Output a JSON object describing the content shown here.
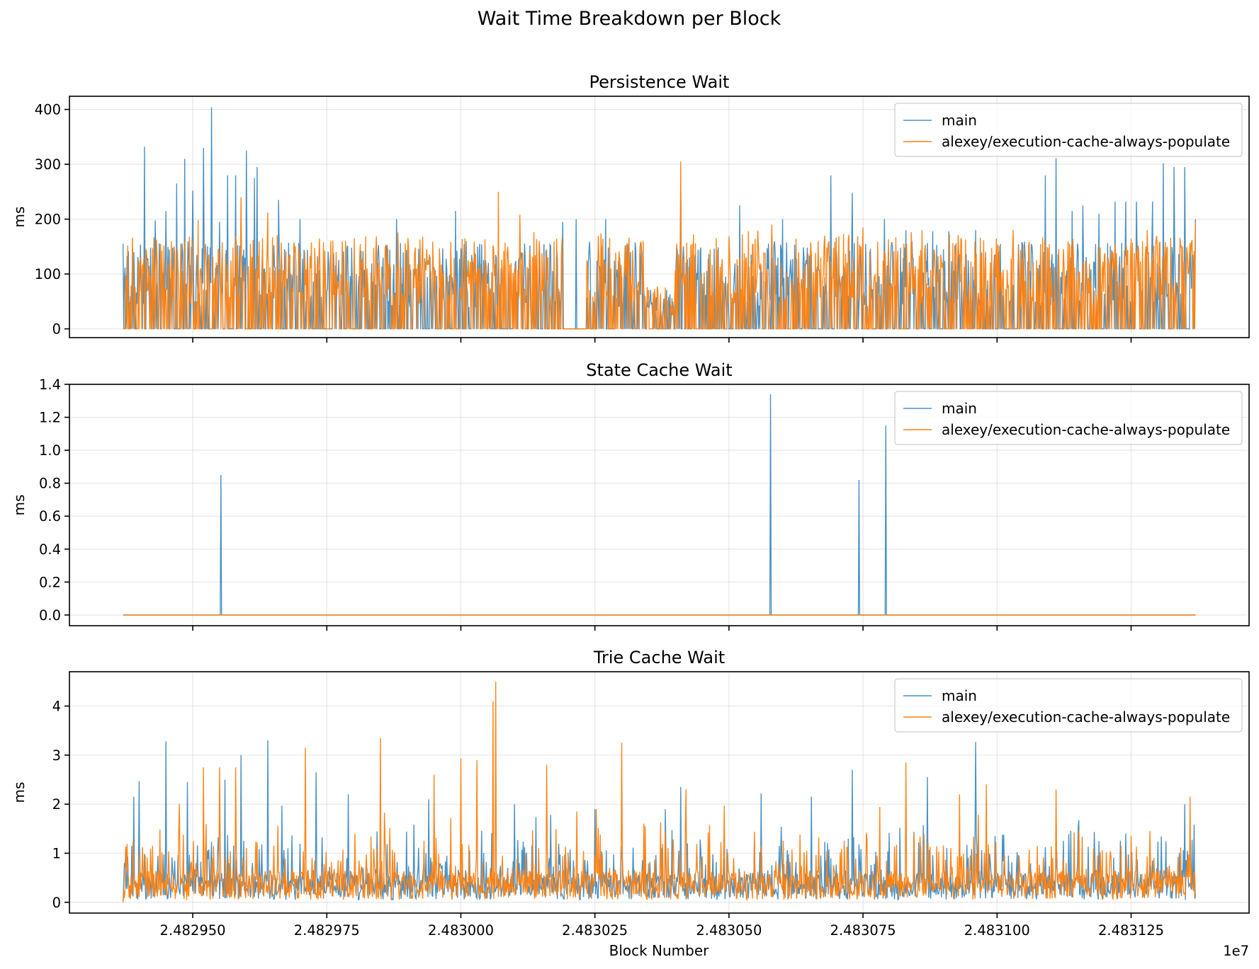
{
  "figure": {
    "title": "Wait Time Breakdown per Block"
  },
  "chart_data": {
    "type": "line",
    "x_label": "Block Number",
    "x_offset_label": "1e7",
    "x_ticks": [
      2482950,
      2482975,
      2483000,
      2483025,
      2483050,
      2483075,
      2483100,
      2483125
    ],
    "x_tick_labels": [
      "2.482950",
      "2.482975",
      "2.483000",
      "2.483025",
      "2.483050",
      "2.483075",
      "2.483100",
      "2.483125"
    ],
    "x_range": [
      2482937,
      2483137
    ],
    "xlim": [
      2482927,
      2483147
    ],
    "grid": true,
    "legend_position": "upper right",
    "series": [
      {
        "name": "main",
        "color": "#1f77b4"
      },
      {
        "name": "alexey/execution-cache-always-populate",
        "color": "#ff7f0e"
      }
    ],
    "panels": [
      {
        "title": "Persistence Wait",
        "ylabel": "ms",
        "ylim": [
          -16,
          424
        ],
        "y_ticks": [
          0,
          100,
          200,
          300,
          400
        ],
        "y_tick_labels": [
          "0",
          "100",
          "200",
          "300",
          "400"
        ],
        "main_peaks": [
          {
            "x": 2482937,
            "y": 155
          },
          {
            "x": 2482939,
            "y": 140
          },
          {
            "x": 2482941,
            "y": 332
          },
          {
            "x": 2482943,
            "y": 198
          },
          {
            "x": 2482945,
            "y": 215
          },
          {
            "x": 2482947,
            "y": 265
          },
          {
            "x": 2482948.5,
            "y": 310
          },
          {
            "x": 2482950,
            "y": 252
          },
          {
            "x": 2482952,
            "y": 330
          },
          {
            "x": 2482953.5,
            "y": 404
          },
          {
            "x": 2482955,
            "y": 195
          },
          {
            "x": 2482956.5,
            "y": 280
          },
          {
            "x": 2482958,
            "y": 280
          },
          {
            "x": 2482960,
            "y": 325
          },
          {
            "x": 2482961.5,
            "y": 275
          },
          {
            "x": 2482962,
            "y": 295
          },
          {
            "x": 2482966,
            "y": 235
          },
          {
            "x": 2482970,
            "y": 200
          },
          {
            "x": 2482988,
            "y": 200
          },
          {
            "x": 2482999,
            "y": 215
          },
          {
            "x": 2483019,
            "y": 195
          },
          {
            "x": 2483021.5,
            "y": 200
          },
          {
            "x": 2483027,
            "y": 200
          },
          {
            "x": 2483041,
            "y": 250
          },
          {
            "x": 2483052,
            "y": 225
          },
          {
            "x": 2483060,
            "y": 200
          },
          {
            "x": 2483069,
            "y": 280
          },
          {
            "x": 2483073,
            "y": 248
          },
          {
            "x": 2483079,
            "y": 200
          },
          {
            "x": 2483083,
            "y": 180
          },
          {
            "x": 2483088,
            "y": 178
          },
          {
            "x": 2483091,
            "y": 178
          },
          {
            "x": 2483096,
            "y": 180
          },
          {
            "x": 2483109,
            "y": 280
          },
          {
            "x": 2483111,
            "y": 311
          },
          {
            "x": 2483114,
            "y": 215
          },
          {
            "x": 2483116,
            "y": 225
          },
          {
            "x": 2483119,
            "y": 210
          },
          {
            "x": 2483122,
            "y": 232
          },
          {
            "x": 2483124,
            "y": 232
          },
          {
            "x": 2483126,
            "y": 232
          },
          {
            "x": 2483129,
            "y": 232
          },
          {
            "x": 2483131,
            "y": 302
          },
          {
            "x": 2483133,
            "y": 295
          },
          {
            "x": 2483135,
            "y": 295
          },
          {
            "x": 2483137,
            "y": 200
          }
        ],
        "alexey_peaks": [
          {
            "x": 2482944,
            "y": 155
          },
          {
            "x": 2482951,
            "y": 198
          },
          {
            "x": 2482959,
            "y": 240
          },
          {
            "x": 2482964,
            "y": 212
          },
          {
            "x": 2483007,
            "y": 250
          },
          {
            "x": 2483011,
            "y": 208
          },
          {
            "x": 2483041,
            "y": 305
          },
          {
            "x": 2483058,
            "y": 190
          },
          {
            "x": 2483075,
            "y": 185
          },
          {
            "x": 2483086,
            "y": 180
          },
          {
            "x": 2483103,
            "y": 180
          },
          {
            "x": 2483128,
            "y": 180
          },
          {
            "x": 2483137,
            "y": 195
          }
        ],
        "notes": [
          "main and alexey both sit at 0 ms between 2483019 and 2483023"
        ]
      },
      {
        "title": "State Cache Wait",
        "ylabel": "ms",
        "ylim": [
          -0.065,
          1.4
        ],
        "y_ticks": [
          0.0,
          0.2,
          0.4,
          0.6,
          0.8,
          1.0,
          1.2,
          1.4
        ],
        "y_tick_labels": [
          "0.0",
          "0.2",
          "0.4",
          "0.6",
          "0.8",
          "1.0",
          "1.2",
          "1.4"
        ],
        "main_spikes": [
          {
            "x": 2482955.3,
            "y": 0.85
          },
          {
            "x": 2483057.7,
            "y": 1.34
          },
          {
            "x": 2483074.2,
            "y": 0.82
          },
          {
            "x": 2483079.2,
            "y": 1.15
          }
        ],
        "alexey_constant": 0.0
      },
      {
        "title": "Trie Cache Wait",
        "ylabel": "ms",
        "ylim": [
          -0.22,
          4.7
        ],
        "y_ticks": [
          0,
          1,
          2,
          3,
          4
        ],
        "y_tick_labels": [
          "0",
          "1",
          "2",
          "3",
          "4"
        ],
        "main_peaks": [
          {
            "x": 2482939,
            "y": 2.15
          },
          {
            "x": 2482940,
            "y": 2.47
          },
          {
            "x": 2482945,
            "y": 3.28
          },
          {
            "x": 2482949,
            "y": 2.45
          },
          {
            "x": 2482956,
            "y": 2.5
          },
          {
            "x": 2482959,
            "y": 3.0
          },
          {
            "x": 2482964,
            "y": 3.3
          },
          {
            "x": 2482973,
            "y": 2.65
          },
          {
            "x": 2482979,
            "y": 2.2
          },
          {
            "x": 2482994,
            "y": 2.1
          },
          {
            "x": 2483010,
            "y": 2.0
          },
          {
            "x": 2483025,
            "y": 1.9
          },
          {
            "x": 2483041,
            "y": 2.35
          },
          {
            "x": 2483056,
            "y": 2.22
          },
          {
            "x": 2483073,
            "y": 2.7
          },
          {
            "x": 2483087,
            "y": 2.55
          },
          {
            "x": 2483096,
            "y": 3.27
          },
          {
            "x": 2483124,
            "y": 1.4
          },
          {
            "x": 2483135,
            "y": 2.0
          }
        ],
        "alexey_peaks": [
          {
            "x": 2482952,
            "y": 2.75
          },
          {
            "x": 2482955,
            "y": 2.75
          },
          {
            "x": 2482958,
            "y": 2.75
          },
          {
            "x": 2482971,
            "y": 3.15
          },
          {
            "x": 2482985,
            "y": 3.35
          },
          {
            "x": 2482995,
            "y": 2.6
          },
          {
            "x": 2483000,
            "y": 2.93
          },
          {
            "x": 2483003,
            "y": 2.9
          },
          {
            "x": 2483006,
            "y": 4.1
          },
          {
            "x": 2483006.5,
            "y": 4.5
          },
          {
            "x": 2483016,
            "y": 2.8
          },
          {
            "x": 2483030,
            "y": 3.25
          },
          {
            "x": 2483042,
            "y": 2.3
          },
          {
            "x": 2483083,
            "y": 2.85
          },
          {
            "x": 2483093,
            "y": 2.2
          },
          {
            "x": 2483098,
            "y": 2.4
          },
          {
            "x": 2483111,
            "y": 2.3
          },
          {
            "x": 2483136,
            "y": 2.15
          }
        ]
      }
    ]
  }
}
